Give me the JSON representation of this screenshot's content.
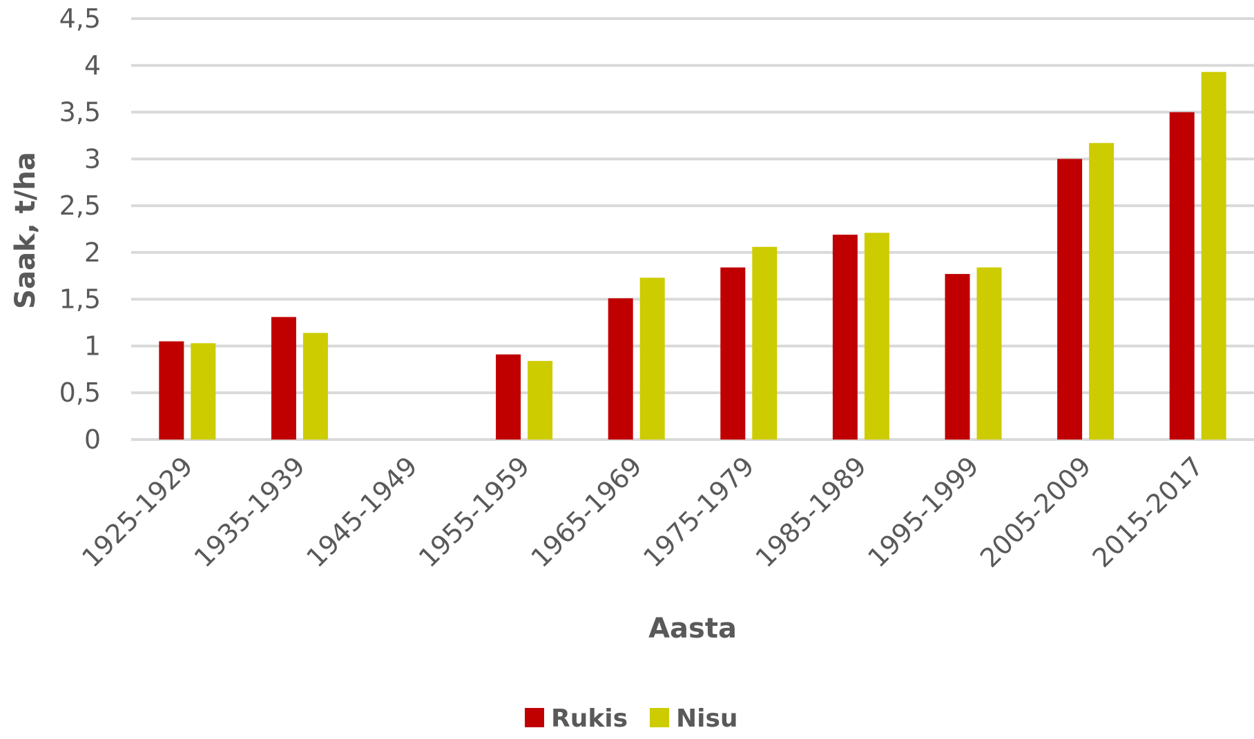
{
  "chart_data": {
    "type": "bar",
    "title": "",
    "xlabel": "Aasta",
    "ylabel": "Saak, t/ha",
    "ylim": [
      0,
      4.5
    ],
    "ytick_step": 0.5,
    "ytick_labels": [
      "0",
      "0,5",
      "1",
      "1,5",
      "2",
      "2,5",
      "3",
      "3,5",
      "4",
      "4,5"
    ],
    "grid": true,
    "legend": "bottom",
    "categories": [
      "1925-1929",
      "1935-1939",
      "1945-1949",
      "1955-1959",
      "1965-1969",
      "1975-1979",
      "1985-1989",
      "1995-1999",
      "2005-2009",
      "2015-2017"
    ],
    "series": [
      {
        "name": "Rukis",
        "color": "#C00000",
        "values": [
          1.05,
          1.31,
          null,
          0.91,
          1.51,
          1.84,
          2.19,
          1.77,
          3.0,
          3.5
        ]
      },
      {
        "name": "Nisu",
        "color": "#CCCC00",
        "values": [
          1.03,
          1.14,
          null,
          0.84,
          1.73,
          2.06,
          2.21,
          1.84,
          3.17,
          3.93
        ]
      }
    ]
  }
}
